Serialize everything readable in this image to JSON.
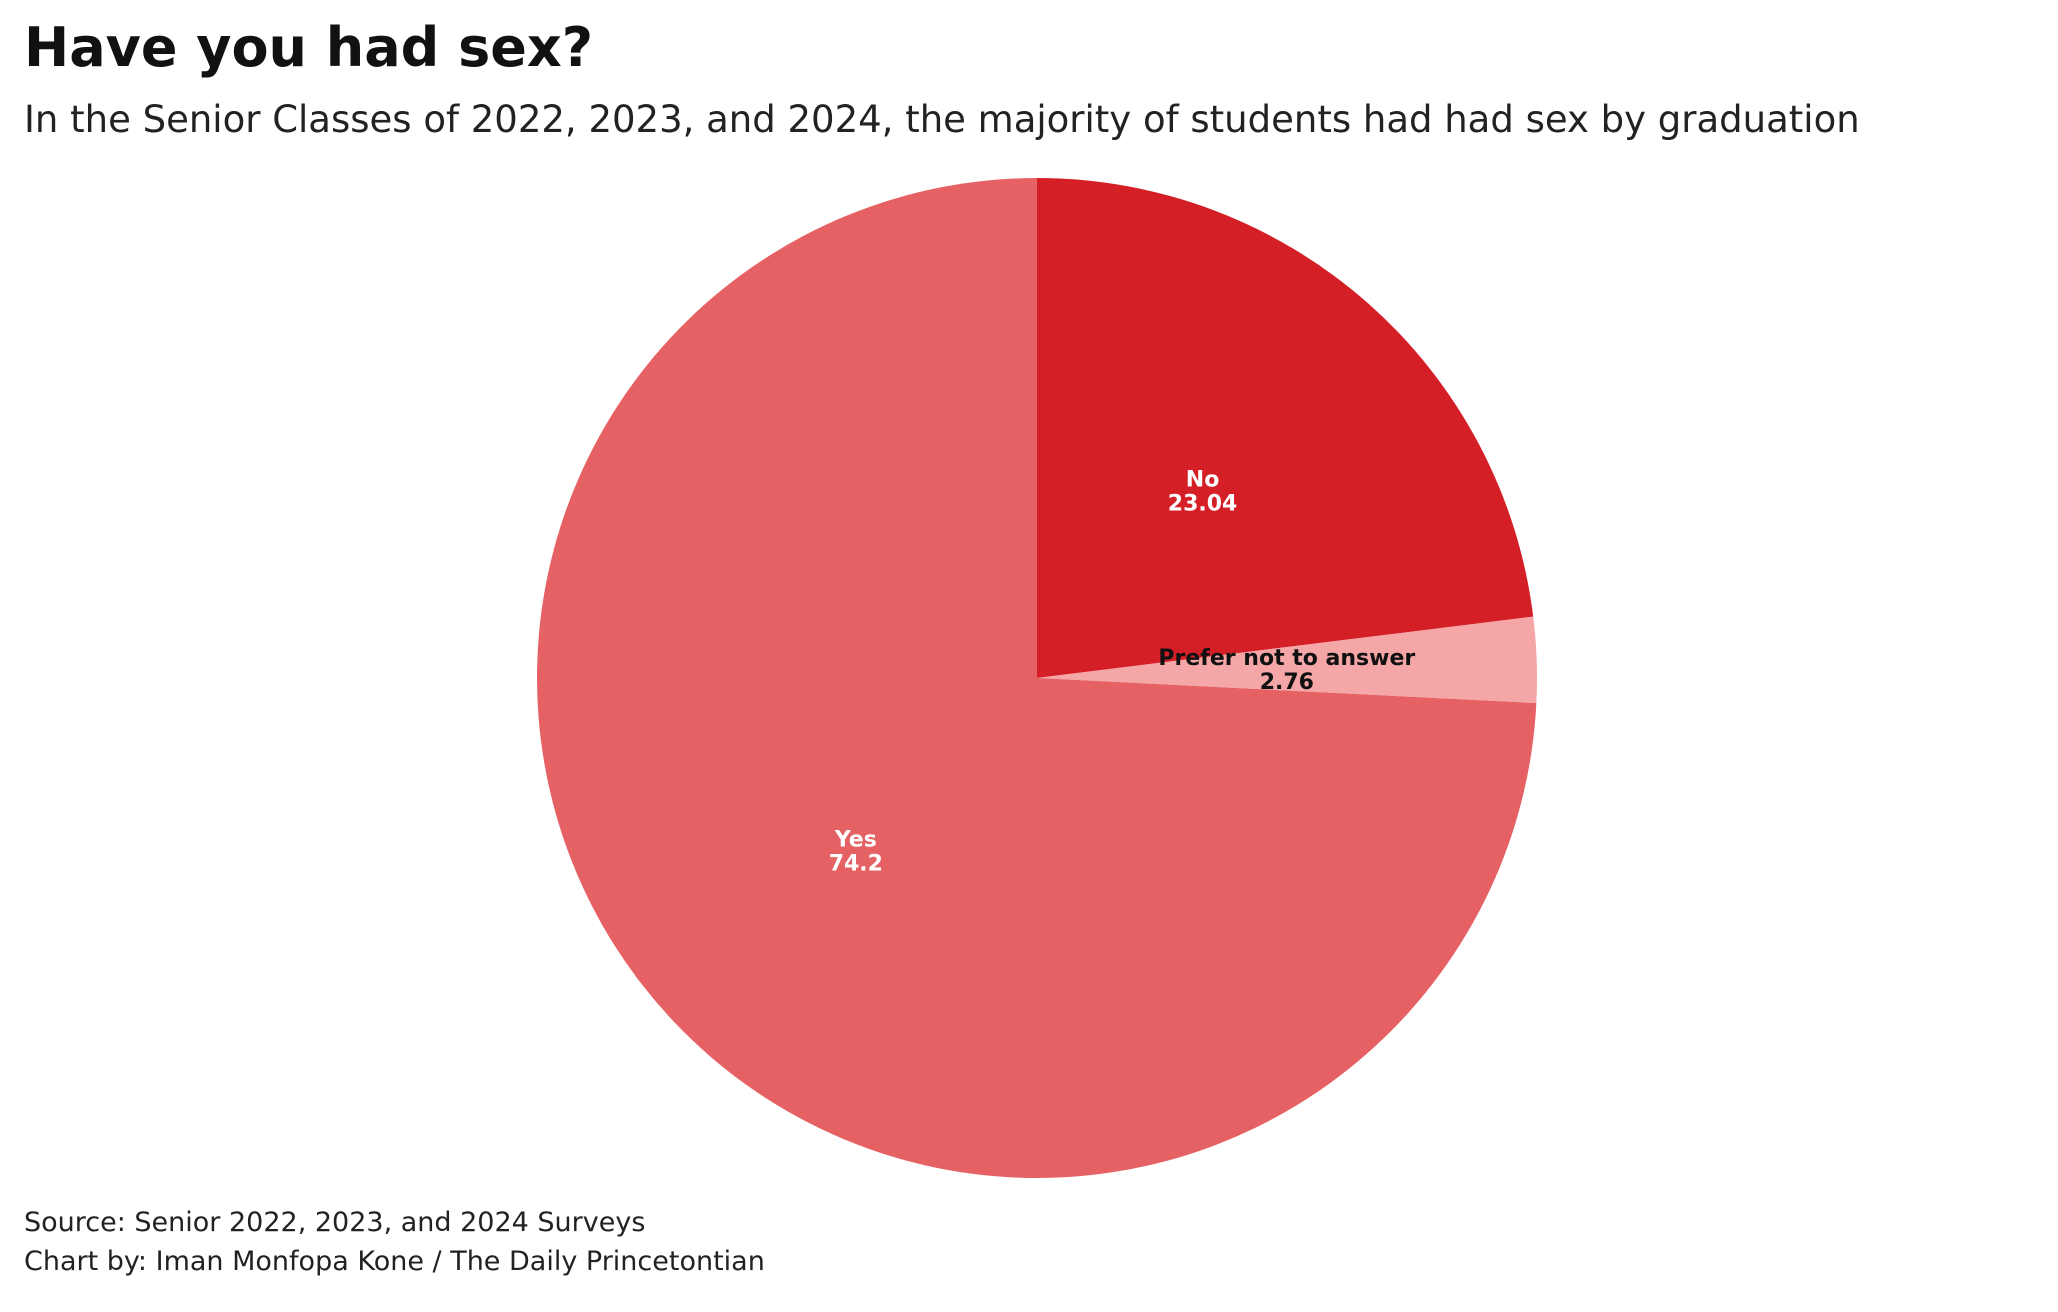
{
  "header": {
    "title": "Have you had sex?",
    "subtitle": "In the Senior Classes of 2022, 2023, and 2024, the majority of students had had sex by graduation"
  },
  "footer": {
    "source": "Source: Senior 2022, 2023, and 2024 Surveys",
    "credit": "Chart by: Iman Monfopa Kone / The Daily Princetontian"
  },
  "chart_data": {
    "type": "pie",
    "title": "Have you had sex?",
    "subtitle": "In the Senior Classes of 2022, 2023, and 2024, the majority of students had had sex by graduation",
    "start_angle_deg": 0,
    "direction": "clockwise",
    "slices": [
      {
        "label": "No",
        "value": 23.04,
        "value_text": "23.04",
        "color": "#d51f27",
        "label_color": "#ffffff"
      },
      {
        "label": "Prefer not to answer",
        "value": 2.76,
        "value_text": "2.76",
        "color": "#f5a6a6",
        "label_color": "#111111"
      },
      {
        "label": "Yes",
        "value": 74.2,
        "value_text": "74.2",
        "color": "#e66163",
        "label_color": "#ffffff"
      }
    ],
    "legend": "none"
  }
}
